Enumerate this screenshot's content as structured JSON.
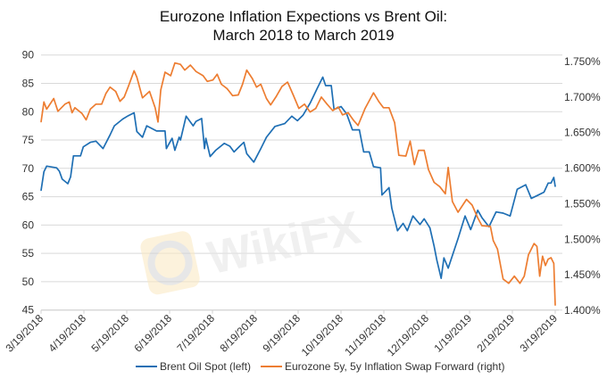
{
  "chart_data": {
    "type": "line",
    "title": "Eurozone Inflation Expections vs Brent Oil:",
    "subtitle": "March 2018 to March 2019",
    "xlabel": "",
    "ylabel_left": "",
    "ylabel_right": "",
    "x_ticks": [
      "3/19/2018",
      "4/19/2018",
      "5/19/2018",
      "6/19/2018",
      "7/19/2018",
      "8/19/2018",
      "9/19/2018",
      "10/19/2018",
      "11/19/2018",
      "12/19/2018",
      "1/19/2019",
      "2/19/2019",
      "3/19/2019"
    ],
    "x_range": [
      "2018-03-19",
      "2019-03-19"
    ],
    "y_left": {
      "ticks": [
        "45",
        "50",
        "55",
        "60",
        "65",
        "70",
        "75",
        "80",
        "85",
        "90"
      ],
      "range": [
        45,
        90
      ]
    },
    "y_right": {
      "ticks": [
        "1.400%",
        "1.450%",
        "1.500%",
        "1.550%",
        "1.600%",
        "1.650%",
        "1.700%",
        "1.750%"
      ],
      "range": [
        1.4,
        1.75
      ]
    },
    "grid": true,
    "legend_position": "bottom",
    "watermark": "WikiFX",
    "series": [
      {
        "name": "Brent Oil Spot (left)",
        "axis": "left",
        "color": "#1f6fb4",
        "points": [
          [
            "2018-03-19",
            66.1
          ],
          [
            "2018-03-21",
            69.4
          ],
          [
            "2018-03-23",
            70.4
          ],
          [
            "2018-03-30",
            70.1
          ],
          [
            "2018-04-01",
            69.5
          ],
          [
            "2018-04-03",
            68.1
          ],
          [
            "2018-04-07",
            67.3
          ],
          [
            "2018-04-09",
            68.5
          ],
          [
            "2018-04-11",
            72.2
          ],
          [
            "2018-04-16",
            72.2
          ],
          [
            "2018-04-18",
            73.8
          ],
          [
            "2018-04-23",
            74.6
          ],
          [
            "2018-04-27",
            74.8
          ],
          [
            "2018-05-02",
            73.5
          ],
          [
            "2018-05-07",
            75.9
          ],
          [
            "2018-05-10",
            77.5
          ],
          [
            "2018-05-16",
            78.7
          ],
          [
            "2018-05-20",
            79.3
          ],
          [
            "2018-05-24",
            79.8
          ],
          [
            "2018-05-26",
            76.5
          ],
          [
            "2018-05-30",
            75.5
          ],
          [
            "2018-06-02",
            77.5
          ],
          [
            "2018-06-09",
            76.6
          ],
          [
            "2018-06-15",
            76.6
          ],
          [
            "2018-06-16",
            73.5
          ],
          [
            "2018-06-20",
            75.3
          ],
          [
            "2018-06-22",
            73.2
          ],
          [
            "2018-06-25",
            75.5
          ],
          [
            "2018-06-26",
            75.0
          ],
          [
            "2018-06-30",
            79.2
          ],
          [
            "2018-07-05",
            77.5
          ],
          [
            "2018-07-07",
            78.3
          ],
          [
            "2018-07-11",
            78.8
          ],
          [
            "2018-07-13",
            73.5
          ],
          [
            "2018-07-14",
            75.3
          ],
          [
            "2018-07-17",
            72.1
          ],
          [
            "2018-07-21",
            73.2
          ],
          [
            "2018-07-27",
            74.4
          ],
          [
            "2018-07-31",
            73.9
          ],
          [
            "2018-08-03",
            72.9
          ],
          [
            "2018-08-07",
            73.9
          ],
          [
            "2018-08-10",
            74.6
          ],
          [
            "2018-08-12",
            72.6
          ],
          [
            "2018-08-17",
            71.1
          ],
          [
            "2018-08-22",
            73.5
          ],
          [
            "2018-08-26",
            75.5
          ],
          [
            "2018-09-01",
            77.4
          ],
          [
            "2018-09-08",
            77.9
          ],
          [
            "2018-09-13",
            79.2
          ],
          [
            "2018-09-17",
            78.4
          ],
          [
            "2018-09-21",
            79.4
          ],
          [
            "2018-09-26",
            81.5
          ],
          [
            "2018-10-01",
            84.1
          ],
          [
            "2018-10-05",
            86.1
          ],
          [
            "2018-10-07",
            84.6
          ],
          [
            "2018-10-11",
            84.6
          ],
          [
            "2018-10-13",
            80.4
          ],
          [
            "2018-10-18",
            80.9
          ],
          [
            "2018-10-22",
            79.6
          ],
          [
            "2018-10-26",
            76.8
          ],
          [
            "2018-10-31",
            76.8
          ],
          [
            "2018-11-03",
            72.9
          ],
          [
            "2018-11-07",
            72.9
          ],
          [
            "2018-11-10",
            70.3
          ],
          [
            "2018-11-15",
            70.1
          ],
          [
            "2018-11-16",
            65.3
          ],
          [
            "2018-11-21",
            66.6
          ],
          [
            "2018-11-23",
            63.0
          ],
          [
            "2018-11-27",
            59.0
          ],
          [
            "2018-12-01",
            60.3
          ],
          [
            "2018-12-04",
            59.0
          ],
          [
            "2018-12-08",
            61.6
          ],
          [
            "2018-12-13",
            60.1
          ],
          [
            "2018-12-16",
            61.1
          ],
          [
            "2018-12-20",
            59.5
          ],
          [
            "2018-12-23",
            56.3
          ],
          [
            "2018-12-25",
            53.8
          ],
          [
            "2018-12-28",
            50.6
          ],
          [
            "2018-12-30",
            54.2
          ],
          [
            "2019-01-02",
            52.4
          ],
          [
            "2019-01-09",
            57.6
          ],
          [
            "2019-01-14",
            61.6
          ],
          [
            "2019-01-18",
            59.2
          ],
          [
            "2019-01-23",
            62.6
          ],
          [
            "2019-01-26",
            61.3
          ],
          [
            "2019-01-31",
            59.7
          ],
          [
            "2019-02-05",
            62.3
          ],
          [
            "2019-02-10",
            62.1
          ],
          [
            "2019-02-15",
            61.6
          ],
          [
            "2019-02-20",
            66.3
          ],
          [
            "2019-02-26",
            67.1
          ],
          [
            "2019-03-02",
            64.7
          ],
          [
            "2019-03-07",
            65.3
          ],
          [
            "2019-03-11",
            65.8
          ],
          [
            "2019-03-14",
            67.4
          ],
          [
            "2019-03-16",
            67.4
          ],
          [
            "2019-03-18",
            68.4
          ],
          [
            "2019-03-19",
            66.8
          ]
        ]
      },
      {
        "name": "Eurozone 5y, 5y Inflation Swap Forward (right)",
        "axis": "right",
        "color": "#ed7d31",
        "points": [
          [
            "2018-03-19",
            1.665
          ],
          [
            "2018-03-21",
            1.693
          ],
          [
            "2018-03-23",
            1.683
          ],
          [
            "2018-03-28",
            1.698
          ],
          [
            "2018-03-31",
            1.68
          ],
          [
            "2018-04-05",
            1.69
          ],
          [
            "2018-04-08",
            1.693
          ],
          [
            "2018-04-10",
            1.678
          ],
          [
            "2018-04-12",
            1.685
          ],
          [
            "2018-04-17",
            1.677
          ],
          [
            "2018-04-20",
            1.668
          ],
          [
            "2018-04-23",
            1.683
          ],
          [
            "2018-04-27",
            1.69
          ],
          [
            "2018-05-01",
            1.69
          ],
          [
            "2018-05-04",
            1.705
          ],
          [
            "2018-05-07",
            1.714
          ],
          [
            "2018-05-11",
            1.708
          ],
          [
            "2018-05-14",
            1.694
          ],
          [
            "2018-05-17",
            1.7
          ],
          [
            "2018-05-20",
            1.715
          ],
          [
            "2018-05-24",
            1.737
          ],
          [
            "2018-05-26",
            1.728
          ],
          [
            "2018-05-30",
            1.699
          ],
          [
            "2018-06-04",
            1.708
          ],
          [
            "2018-06-08",
            1.685
          ],
          [
            "2018-06-10",
            1.665
          ],
          [
            "2018-06-12",
            1.71
          ],
          [
            "2018-06-15",
            1.735
          ],
          [
            "2018-06-19",
            1.73
          ],
          [
            "2018-06-22",
            1.748
          ],
          [
            "2018-06-26",
            1.746
          ],
          [
            "2018-06-29",
            1.738
          ],
          [
            "2018-07-03",
            1.745
          ],
          [
            "2018-07-07",
            1.736
          ],
          [
            "2018-07-12",
            1.73
          ],
          [
            "2018-07-15",
            1.722
          ],
          [
            "2018-07-19",
            1.724
          ],
          [
            "2018-07-22",
            1.732
          ],
          [
            "2018-07-25",
            1.718
          ],
          [
            "2018-07-29",
            1.712
          ],
          [
            "2018-08-02",
            1.702
          ],
          [
            "2018-08-06",
            1.703
          ],
          [
            "2018-08-09",
            1.718
          ],
          [
            "2018-08-12",
            1.738
          ],
          [
            "2018-08-16",
            1.726
          ],
          [
            "2018-08-19",
            1.714
          ],
          [
            "2018-08-22",
            1.718
          ],
          [
            "2018-08-26",
            1.698
          ],
          [
            "2018-08-29",
            1.689
          ],
          [
            "2018-09-02",
            1.701
          ],
          [
            "2018-09-06",
            1.715
          ],
          [
            "2018-09-10",
            1.721
          ],
          [
            "2018-09-14",
            1.703
          ],
          [
            "2018-09-18",
            1.684
          ],
          [
            "2018-09-22",
            1.69
          ],
          [
            "2018-09-26",
            1.679
          ],
          [
            "2018-09-30",
            1.684
          ],
          [
            "2018-10-04",
            1.7
          ],
          [
            "2018-10-08",
            1.69
          ],
          [
            "2018-10-12",
            1.681
          ],
          [
            "2018-10-16",
            1.686
          ],
          [
            "2018-10-19",
            1.675
          ],
          [
            "2018-10-23",
            1.678
          ],
          [
            "2018-10-27",
            1.667
          ],
          [
            "2018-10-30",
            1.66
          ],
          [
            "2018-11-04",
            1.684
          ],
          [
            "2018-11-10",
            1.706
          ],
          [
            "2018-11-14",
            1.693
          ],
          [
            "2018-11-17",
            1.685
          ],
          [
            "2018-11-21",
            1.685
          ],
          [
            "2018-11-25",
            1.664
          ],
          [
            "2018-11-28",
            1.618
          ],
          [
            "2018-12-03",
            1.617
          ],
          [
            "2018-12-06",
            1.638
          ],
          [
            "2018-12-09",
            1.605
          ],
          [
            "2018-12-12",
            1.625
          ],
          [
            "2018-12-16",
            1.625
          ],
          [
            "2018-12-19",
            1.598
          ],
          [
            "2018-12-23",
            1.58
          ],
          [
            "2018-12-27",
            1.574
          ],
          [
            "2018-12-31",
            1.564
          ],
          [
            "2019-01-02",
            1.601
          ],
          [
            "2019-01-05",
            1.553
          ],
          [
            "2019-01-09",
            1.538
          ],
          [
            "2019-01-15",
            1.556
          ],
          [
            "2019-01-19",
            1.548
          ],
          [
            "2019-01-23",
            1.53
          ],
          [
            "2019-01-26",
            1.519
          ],
          [
            "2019-02-01",
            1.518
          ],
          [
            "2019-02-03",
            1.498
          ],
          [
            "2019-02-06",
            1.486
          ],
          [
            "2019-02-10",
            1.444
          ],
          [
            "2019-02-14",
            1.438
          ],
          [
            "2019-02-18",
            1.448
          ],
          [
            "2019-02-22",
            1.438
          ],
          [
            "2019-02-25",
            1.448
          ],
          [
            "2019-02-28",
            1.478
          ],
          [
            "2019-03-04",
            1.494
          ],
          [
            "2019-03-06",
            1.49
          ],
          [
            "2019-03-08",
            1.448
          ],
          [
            "2019-03-10",
            1.476
          ],
          [
            "2019-03-12",
            1.463
          ],
          [
            "2019-03-14",
            1.472
          ],
          [
            "2019-03-16",
            1.474
          ],
          [
            "2019-03-18",
            1.466
          ],
          [
            "2019-03-19",
            1.407
          ]
        ]
      }
    ]
  }
}
